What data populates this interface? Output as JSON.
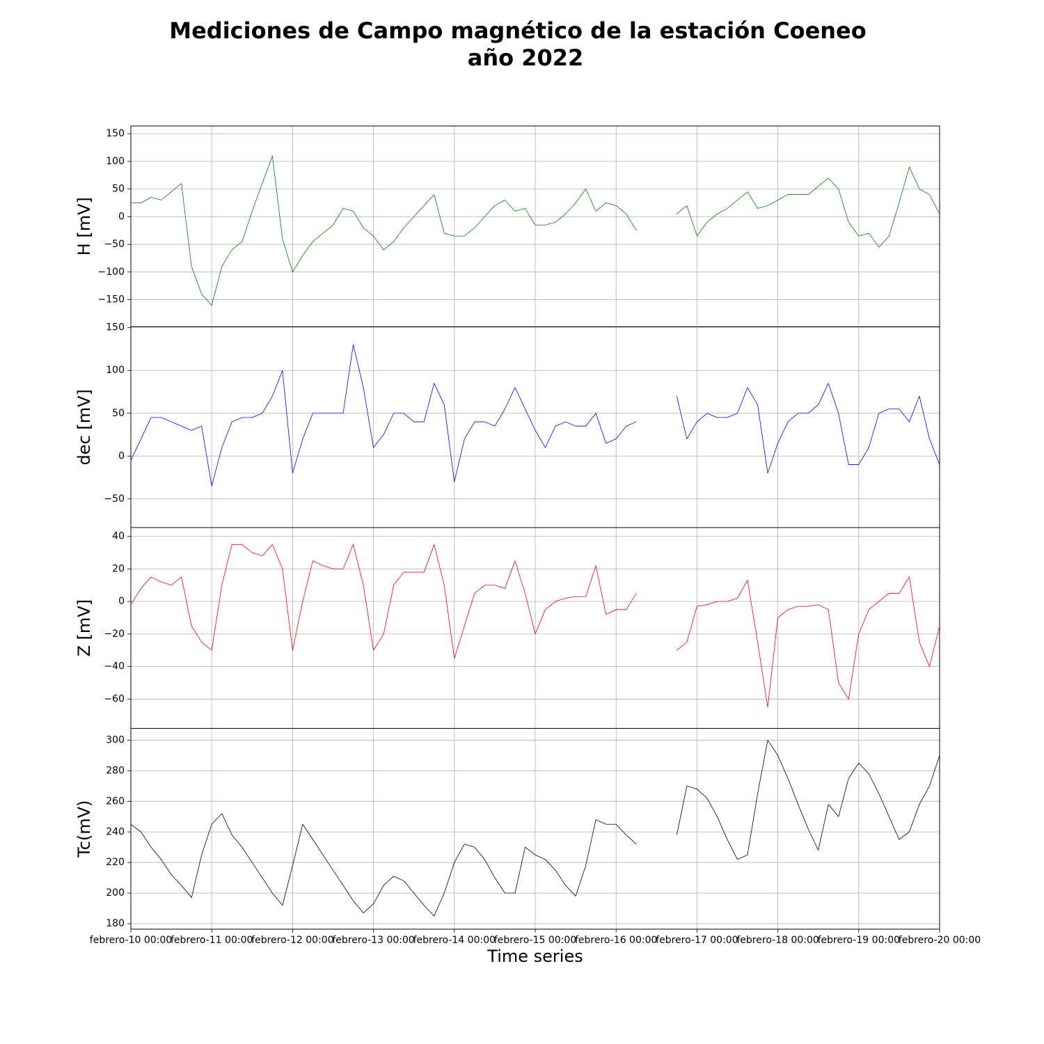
{
  "chart_data": {
    "type": "line",
    "title": [
      "Mediciones de Campo magnético de la estación Coeneo",
      "año 2022"
    ],
    "xlabel": "Time series",
    "grid": true,
    "xlim": [
      10,
      20
    ],
    "xticks": [
      {
        "value": 10,
        "label": "febrero-10 00:00"
      },
      {
        "value": 11,
        "label": "febrero-11 00:00"
      },
      {
        "value": 12,
        "label": "febrero-12 00:00"
      },
      {
        "value": 13,
        "label": "febrero-13 00:00"
      },
      {
        "value": 14,
        "label": "febrero-14 00:00"
      },
      {
        "value": 15,
        "label": "febrero-15 00:00"
      },
      {
        "value": 16,
        "label": "febrero-16 00:00"
      },
      {
        "value": 17,
        "label": "febrero-17 00:00"
      },
      {
        "value": 18,
        "label": "febrero-18 00:00"
      },
      {
        "value": 19,
        "label": "febrero-19 00:00"
      },
      {
        "value": 20,
        "label": "febrero-20 00:00"
      }
    ],
    "x": [
      10,
      10.125,
      10.25,
      10.375,
      10.5,
      10.625,
      10.75,
      10.875,
      11,
      11.125,
      11.25,
      11.375,
      11.5,
      11.625,
      11.75,
      11.875,
      12,
      12.125,
      12.25,
      12.375,
      12.5,
      12.625,
      12.75,
      12.875,
      13,
      13.125,
      13.25,
      13.375,
      13.5,
      13.625,
      13.75,
      13.875,
      14,
      14.125,
      14.25,
      14.375,
      14.5,
      14.625,
      14.75,
      14.875,
      15,
      15.125,
      15.25,
      15.375,
      15.5,
      15.625,
      15.75,
      15.875,
      16,
      16.125,
      16.25,
      16.375,
      16.5,
      16.625,
      16.75,
      16.875,
      17,
      17.125,
      17.25,
      17.375,
      17.5,
      17.625,
      17.75,
      17.875,
      18,
      18.125,
      18.25,
      18.375,
      18.5,
      18.625,
      18.75,
      18.875,
      19,
      19.125,
      19.25,
      19.375,
      19.5,
      19.625,
      19.75,
      19.875,
      20
    ],
    "panels": [
      {
        "ylabel": "H [mV]",
        "color": "#008000",
        "ylim": [
          -199,
          164
        ],
        "yticks": [
          {
            "value": -150,
            "label": "−150"
          },
          {
            "value": -100,
            "label": "−100"
          },
          {
            "value": -50,
            "label": "−50"
          },
          0,
          50,
          100,
          150
        ],
        "values": [
          25,
          25,
          35,
          30,
          45,
          60,
          -90,
          -140,
          -160,
          -90,
          -60,
          -45,
          10,
          60,
          110,
          -40,
          -100,
          -70,
          -45,
          -30,
          -15,
          15,
          10,
          -20,
          -35,
          -60,
          -45,
          -20,
          0,
          20,
          40,
          -30,
          -35,
          -35,
          -20,
          0,
          20,
          30,
          10,
          15,
          -15,
          -15,
          -10,
          5,
          25,
          50,
          10,
          25,
          20,
          5,
          -25,
          null,
          null,
          null,
          5,
          20,
          -35,
          -10,
          5,
          15,
          30,
          45,
          15,
          20,
          30,
          40,
          40,
          40,
          55,
          70,
          50,
          -10,
          -35,
          -30,
          -55,
          -35,
          25,
          90,
          50,
          40,
          5
        ]
      },
      {
        "ylabel": "dec [mV]",
        "color": "#0000ff",
        "ylim": [
          -83.5,
          151
        ],
        "yticks": [
          {
            "value": -50,
            "label": "−50"
          },
          0,
          50,
          100,
          150
        ],
        "values": [
          -5,
          20,
          45,
          45,
          40,
          35,
          30,
          35,
          -35,
          10,
          40,
          45,
          45,
          50,
          70,
          100,
          -20,
          20,
          50,
          50,
          50,
          50,
          130,
          80,
          10,
          25,
          50,
          50,
          40,
          40,
          85,
          60,
          -30,
          20,
          40,
          40,
          35,
          55,
          80,
          55,
          30,
          10,
          35,
          40,
          35,
          35,
          50,
          15,
          20,
          35,
          40,
          null,
          null,
          null,
          70,
          20,
          40,
          50,
          45,
          45,
          50,
          80,
          60,
          -20,
          15,
          40,
          50,
          50,
          60,
          85,
          50,
          -10,
          -10,
          10,
          50,
          55,
          55,
          40,
          70,
          20,
          -10
        ]
      },
      {
        "ylabel": "Z [mV]",
        "color": "#ff0000",
        "ylim": [
          -78,
          45.4
        ],
        "yticks": [
          {
            "value": -60,
            "label": "−60"
          },
          {
            "value": -40,
            "label": "−40"
          },
          {
            "value": -20,
            "label": "−20"
          },
          0,
          20,
          40
        ],
        "values": [
          -2,
          8,
          15,
          12,
          10,
          15,
          -15,
          -25,
          -30,
          10,
          35,
          35,
          30,
          28,
          35,
          20,
          -30,
          0,
          25,
          22,
          20,
          20,
          35,
          10,
          -30,
          -20,
          10,
          18,
          18,
          18,
          35,
          10,
          -35,
          -15,
          5,
          10,
          10,
          8,
          25,
          5,
          -20,
          -5,
          0,
          2,
          3,
          3,
          22,
          -8,
          -5,
          -5,
          5,
          null,
          null,
          null,
          -30,
          -25,
          -3,
          -2,
          0,
          0,
          2,
          13,
          -25,
          -65,
          -10,
          -5,
          -3,
          -3,
          -2,
          -5,
          -50,
          -60,
          -20,
          -5,
          0,
          5,
          5,
          15,
          -25,
          -40,
          -15
        ]
      },
      {
        "ylabel": "Tc(mV)",
        "color": "#000000",
        "ylim": [
          176.4,
          307.7
        ],
        "yticks": [
          180,
          200,
          220,
          240,
          260,
          280,
          300
        ],
        "values": [
          245,
          240,
          230,
          222,
          212,
          205,
          197,
          225,
          245,
          252,
          238,
          230,
          220,
          210,
          200,
          192,
          218,
          245,
          235,
          225,
          215,
          205,
          195,
          187,
          193,
          205,
          211,
          208,
          200,
          192,
          185,
          200,
          220,
          232,
          230,
          222,
          210,
          200,
          200,
          230,
          225,
          222,
          215,
          205,
          198,
          218,
          248,
          245,
          245,
          238,
          232,
          null,
          null,
          null,
          238,
          270,
          268,
          262,
          250,
          235,
          222,
          225,
          265,
          300,
          290,
          275,
          258,
          242,
          228,
          258,
          250,
          275,
          285,
          278,
          265,
          250,
          235,
          240,
          258,
          270,
          290
        ]
      }
    ]
  }
}
